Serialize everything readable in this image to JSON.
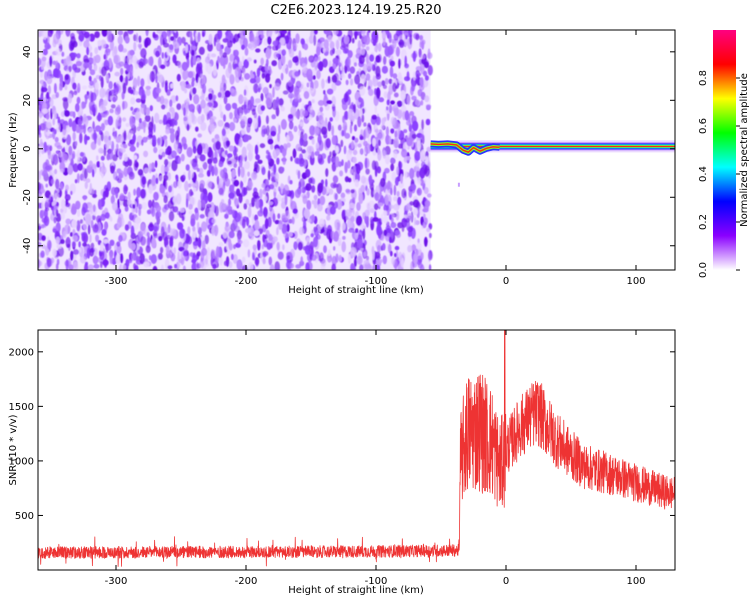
{
  "figure": {
    "title": "C2E6.2023.124.19.25.R20"
  },
  "chart_data": [
    {
      "type": "heatmap",
      "xlabel": "Height of straight line (km)",
      "ylabel": "Frequency (Hz)",
      "xlim": [
        -360,
        130
      ],
      "ylim": [
        -50,
        49
      ],
      "x_ticks": [
        -300,
        -200,
        -100,
        0,
        100
      ],
      "y_ticks": [
        -40,
        -20,
        0,
        20,
        40
      ],
      "noise_region_x": [
        -360,
        -58
      ],
      "meteor_trace": {
        "x_start": -58,
        "x_end": 130,
        "frequency_hz": 1
      },
      "colorbar": {
        "label": "Normalized spectral amplitude",
        "range": [
          0,
          1
        ],
        "ticks": [
          0.0,
          0.2,
          0.4,
          0.6,
          0.8
        ],
        "colormap": [
          "#ffffff",
          "#8a00ff",
          "#0000ff",
          "#00ffff",
          "#00ff00",
          "#ffff00",
          "#ff0000",
          "#ff0080"
        ]
      },
      "grid": false
    },
    {
      "type": "line",
      "xlabel": "Height of straight line (km)",
      "ylabel": "SNR (10 * v/v)",
      "xlim": [
        -360,
        130
      ],
      "ylim": [
        0,
        2200
      ],
      "x_ticks": [
        -300,
        -200,
        -100,
        0,
        100
      ],
      "y_ticks": [
        500,
        1000,
        1500,
        2000
      ],
      "series": [
        {
          "color": "#ee3333",
          "profile": {
            "x": [
              -360,
              -200,
              -100,
              -36,
              -35,
              -30,
              -20,
              -10,
              -5,
              -2,
              0,
              5,
              10,
              20,
              25,
              30,
              40,
              50,
              60,
              80,
              100,
              120,
              130
            ],
            "y": [
              160,
              165,
              170,
              180,
              1000,
              1250,
              1300,
              1150,
              950,
              1000,
              1100,
              1200,
              1300,
              1420,
              1450,
              1350,
              1180,
              1060,
              950,
              880,
              800,
              720,
              700
            ]
          },
          "peak": {
            "x": -1,
            "y": 2200
          }
        }
      ],
      "grid": false
    }
  ]
}
